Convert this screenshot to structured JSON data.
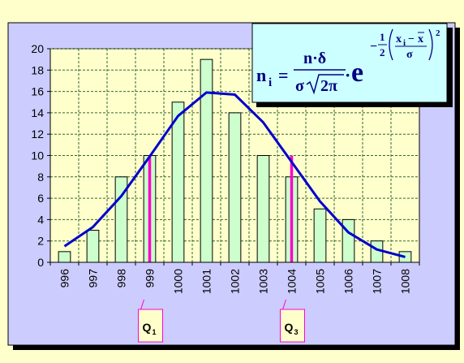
{
  "chart_data": {
    "type": "bar",
    "title": "",
    "xlabel": "",
    "ylabel": "",
    "categories": [
      "996",
      "997",
      "998",
      "999",
      "1000",
      "1001",
      "1002",
      "1003",
      "1004",
      "1005",
      "1006",
      "1007",
      "1008"
    ],
    "values": [
      1,
      3,
      8,
      10,
      15,
      19,
      14,
      10,
      8,
      5,
      4,
      2,
      1
    ],
    "ylim": [
      0,
      20
    ],
    "yticks": [
      "0",
      "2",
      "4",
      "6",
      "8",
      "10",
      "12",
      "14",
      "16",
      "18",
      "20"
    ],
    "grid": true,
    "curve": {
      "type": "line",
      "x": [
        996,
        997,
        998,
        999,
        1000,
        1001,
        1002,
        1003,
        1004,
        1005,
        1006,
        1007,
        1008
      ],
      "y": [
        1.5,
        3.3,
        6.2,
        9.9,
        13.7,
        15.9,
        15.7,
        13.1,
        9.4,
        5.7,
        2.8,
        1.2,
        0.5
      ]
    },
    "quartiles": [
      {
        "label": "Q",
        "sub": "1",
        "x": 999
      },
      {
        "label": "Q",
        "sub": "3",
        "x": 1004
      }
    ],
    "formula": {
      "lhs_n": "n",
      "lhs_sub": "i",
      "eq": "=",
      "num": "n·δ",
      "den_sigma": "σ",
      "sqrt_body": "2π",
      "dot": "·",
      "base": "e",
      "minus": "−",
      "half_num": "1",
      "half_den": "2",
      "frac_num_x": "x",
      "frac_num_sub": "i",
      "frac_num_minus": "−",
      "frac_num_xbar": "x",
      "frac_den": "σ",
      "power": "2"
    },
    "colors": {
      "outer_bg": "#ffffcc",
      "panel_bg": "#ccccff",
      "plot_bg": "#ffffcc",
      "bar_fill": "#ccffcc",
      "curve": "#0000cc",
      "quartile": "#ff00cc",
      "grid": "#336633",
      "formula_bg": "#ccffff"
    }
  }
}
